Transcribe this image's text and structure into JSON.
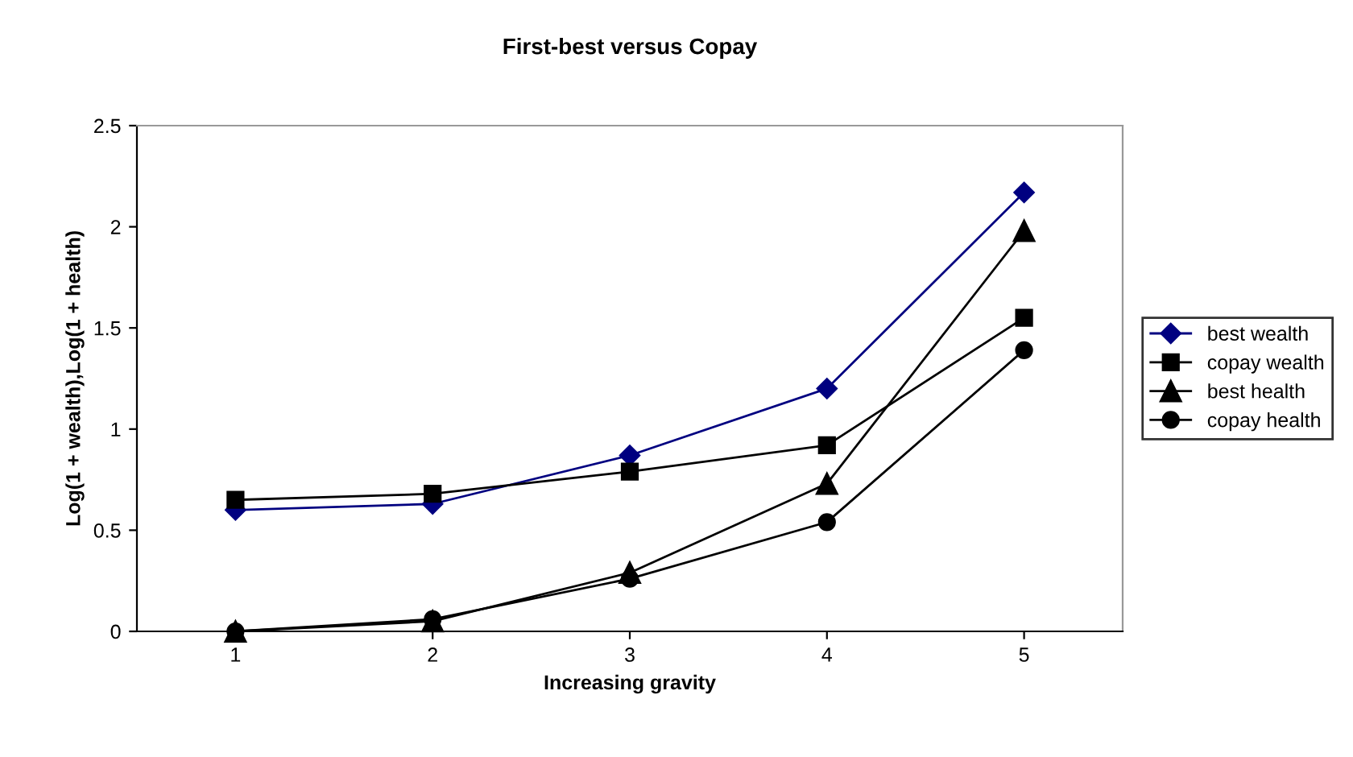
{
  "chart_data": {
    "type": "line",
    "title": "First-best versus Copay",
    "xlabel": "Increasing gravity",
    "ylabel": "Log(1 + wealth),Log(1 + health)",
    "categories": [
      "1",
      "2",
      "3",
      "4",
      "5"
    ],
    "series": [
      {
        "name": "best wealth",
        "color": "#000080",
        "marker": "diamond",
        "values": [
          0.6,
          0.63,
          0.87,
          1.2,
          2.17
        ]
      },
      {
        "name": "copay wealth",
        "color": "#000000",
        "marker": "square",
        "values": [
          0.65,
          0.68,
          0.79,
          0.92,
          1.55
        ]
      },
      {
        "name": "best health",
        "color": "#000000",
        "marker": "triangle",
        "values": [
          0.0,
          0.05,
          0.29,
          0.73,
          1.98
        ]
      },
      {
        "name": "copay health",
        "color": "#000000",
        "marker": "circle",
        "values": [
          0.0,
          0.06,
          0.26,
          0.54,
          1.39
        ]
      }
    ],
    "ylim": [
      0,
      2.5
    ],
    "yticks": [
      0,
      0.5,
      1,
      1.5,
      2,
      2.5
    ],
    "grid": false,
    "legend": "right"
  }
}
